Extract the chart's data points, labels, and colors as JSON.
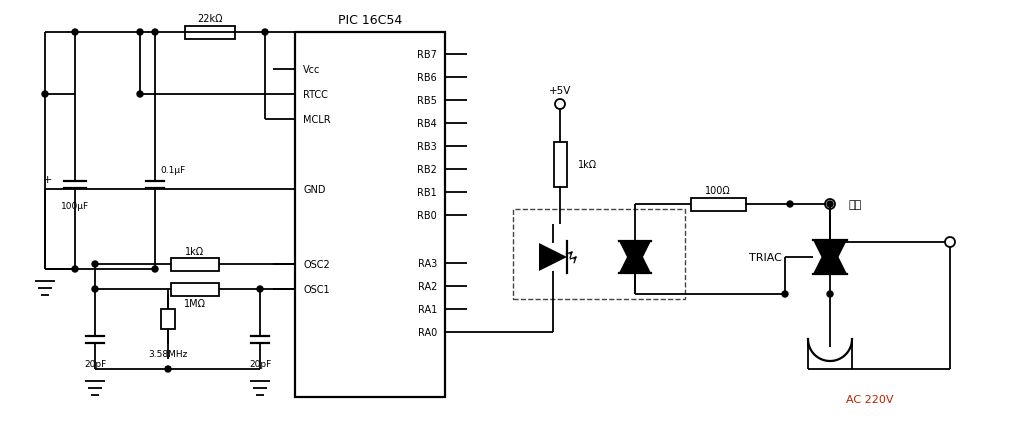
{
  "background": "#ffffff",
  "line_color": "#000000",
  "red_text_color": "#bb2200",
  "fig_width": 10.24,
  "fig_height": 4.27,
  "dpi": 100,
  "ic_title": "PIC 16C54",
  "left_pin_labels": [
    "Vcc",
    "RTCC",
    "MCLR",
    "GND",
    "OSC2",
    "OSC1"
  ],
  "right_pin_labels": [
    "RB7",
    "RB6",
    "RB5",
    "RB4",
    "RB3",
    "RB2",
    "RB1",
    "RB0",
    "RA3",
    "RA2",
    "RA1",
    "RA0"
  ],
  "ac_label": "AC 220V",
  "load_label": "负载",
  "v5_label": "+5V",
  "triac_label": "TRIAC",
  "res_22k": "22kΩ",
  "res_1k_top": "1kΩ",
  "res_1m": "1MΩ",
  "res_1k_v5": "1kΩ",
  "res_100": "100Ω",
  "cap_100u": "100μF",
  "cap_01u": "0.1μF",
  "cap_20p_1": "20pF",
  "cap_20p_2": "20pF",
  "crystal_label": "3.58MHz"
}
